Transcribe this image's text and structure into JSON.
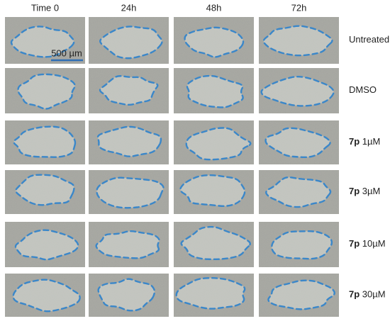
{
  "columns": [
    "Time 0",
    "24h",
    "48h",
    "72h"
  ],
  "rows": [
    {
      "label": "Untreated"
    },
    {
      "label": "DMSO"
    },
    {
      "compound": "7p",
      "dose": "1µM"
    },
    {
      "compound": "7p",
      "dose": "3µM"
    },
    {
      "compound": "7p",
      "dose": "10µM"
    },
    {
      "compound": "7p",
      "dose": "30µM"
    }
  ],
  "scale_bar": "500 µm"
}
